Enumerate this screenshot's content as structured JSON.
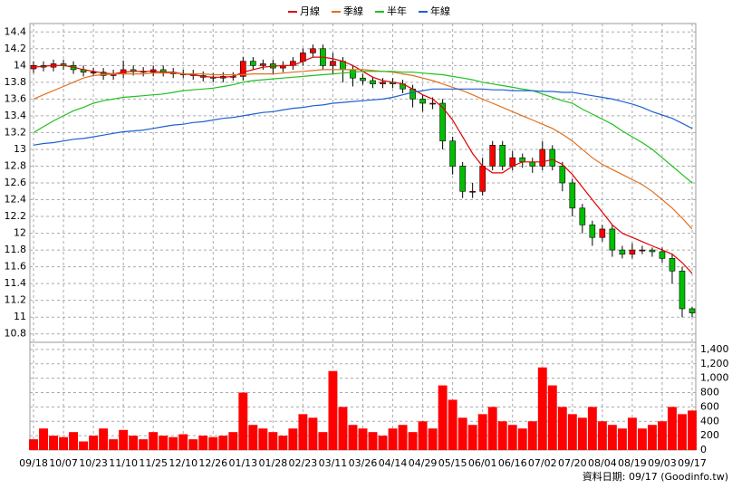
{
  "chart_data": {
    "type": "candlestick",
    "categories": [
      "09/18",
      null,
      null,
      "10/07",
      null,
      null,
      "10/23",
      null,
      null,
      "11/10",
      null,
      null,
      "11/25",
      null,
      null,
      "12/10",
      null,
      null,
      "12/26",
      null,
      null,
      "01/13",
      null,
      null,
      "01/28",
      null,
      null,
      "02/23",
      null,
      null,
      "03/11",
      null,
      null,
      "03/26",
      null,
      null,
      "04/14",
      null,
      null,
      "04/29",
      null,
      null,
      "05/15",
      null,
      null,
      "06/01",
      null,
      null,
      "06/16",
      null,
      null,
      "07/02",
      null,
      null,
      "07/20",
      null,
      null,
      "08/04",
      null,
      null,
      "08/19",
      null,
      null,
      "09/03",
      null,
      null,
      "09/17"
    ],
    "open": [
      13.96,
      14.0,
      13.98,
      14.02,
      14.0,
      13.95,
      13.92,
      13.92,
      13.88,
      13.9,
      13.95,
      13.93,
      13.92,
      13.95,
      13.92,
      13.9,
      13.9,
      13.88,
      13.86,
      13.85,
      13.87,
      13.87,
      14.05,
      14.0,
      14.02,
      13.97,
      14.0,
      14.05,
      14.15,
      14.2,
      14.0,
      14.05,
      13.95,
      13.85,
      13.82,
      13.78,
      13.8,
      13.78,
      13.72,
      13.6,
      13.55,
      13.55,
      13.1,
      12.8,
      12.5,
      12.5,
      12.8,
      13.05,
      12.8,
      12.9,
      12.85,
      12.8,
      13.0,
      12.8,
      12.6,
      12.3,
      12.1,
      11.95,
      12.05,
      11.8,
      11.75,
      11.8,
      11.8,
      11.78,
      11.7,
      11.55,
      11.1
    ],
    "high": [
      14.05,
      14.05,
      14.07,
      14.07,
      14.05,
      14.0,
      13.97,
      13.97,
      13.95,
      14.06,
      14.0,
      13.98,
      14.0,
      14.0,
      13.97,
      13.95,
      13.95,
      13.93,
      13.91,
      13.92,
      13.92,
      14.1,
      14.1,
      14.07,
      14.07,
      14.05,
      14.1,
      14.2,
      14.25,
      14.25,
      14.15,
      14.1,
      14.0,
      13.9,
      13.87,
      13.85,
      13.85,
      13.83,
      13.77,
      13.65,
      13.62,
      13.6,
      13.15,
      12.85,
      12.6,
      12.9,
      13.1,
      13.1,
      12.98,
      12.95,
      12.9,
      13.1,
      13.05,
      12.85,
      12.65,
      12.35,
      12.15,
      12.1,
      12.1,
      11.85,
      11.88,
      11.85,
      11.83,
      11.83,
      11.75,
      11.6,
      11.12
    ],
    "low": [
      13.91,
      13.93,
      13.93,
      13.95,
      13.9,
      13.87,
      13.87,
      13.83,
      13.83,
      13.85,
      13.88,
      13.87,
      13.87,
      13.87,
      13.85,
      13.85,
      13.83,
      13.81,
      13.8,
      13.8,
      13.82,
      13.82,
      13.95,
      13.95,
      13.9,
      13.92,
      13.95,
      14.0,
      14.1,
      13.95,
      13.9,
      13.8,
      13.75,
      13.77,
      13.73,
      13.73,
      13.73,
      13.67,
      13.5,
      13.45,
      13.48,
      13.0,
      12.7,
      12.42,
      12.42,
      12.45,
      12.75,
      12.75,
      12.75,
      12.78,
      12.72,
      12.75,
      12.75,
      12.5,
      12.2,
      12.0,
      11.85,
      11.9,
      11.72,
      11.7,
      11.7,
      11.75,
      11.72,
      11.65,
      11.4,
      11.0,
      11.0
    ],
    "close": [
      14.0,
      13.98,
      14.02,
      14.0,
      13.95,
      13.92,
      13.92,
      13.88,
      13.9,
      13.95,
      13.93,
      13.92,
      13.95,
      13.92,
      13.9,
      13.9,
      13.88,
      13.86,
      13.85,
      13.87,
      13.87,
      14.05,
      14.0,
      14.02,
      13.97,
      14.0,
      14.05,
      14.15,
      14.2,
      14.0,
      14.05,
      13.95,
      13.85,
      13.82,
      13.78,
      13.8,
      13.78,
      13.72,
      13.6,
      13.55,
      13.55,
      13.1,
      12.8,
      12.5,
      12.5,
      12.8,
      13.05,
      12.8,
      12.9,
      12.85,
      12.8,
      13.0,
      12.8,
      12.6,
      12.3,
      12.1,
      11.95,
      12.05,
      11.8,
      11.75,
      11.8,
      11.8,
      11.78,
      11.7,
      11.55,
      11.1,
      11.05
    ],
    "up_color": "#ff0000",
    "down_color": "#00c000",
    "series": [
      {
        "name": "月線",
        "color": "#e00000",
        "values": [
          13.98,
          13.99,
          14.0,
          14.0,
          13.98,
          13.95,
          13.93,
          13.91,
          13.9,
          13.92,
          13.93,
          13.93,
          13.93,
          13.92,
          13.92,
          13.9,
          13.89,
          13.87,
          13.86,
          13.86,
          13.87,
          13.92,
          13.95,
          13.98,
          13.99,
          14.0,
          14.0,
          14.05,
          14.1,
          14.1,
          14.08,
          14.05,
          14.0,
          13.93,
          13.86,
          13.82,
          13.8,
          13.78,
          13.72,
          13.65,
          13.6,
          13.5,
          13.35,
          13.15,
          12.95,
          12.8,
          12.72,
          12.72,
          12.8,
          12.85,
          12.85,
          12.85,
          12.88,
          12.82,
          12.7,
          12.55,
          12.4,
          12.25,
          12.1,
          12.0,
          11.95,
          11.9,
          11.85,
          11.8,
          11.75,
          11.65,
          11.52
        ]
      },
      {
        "name": "季線",
        "color": "#e07020",
        "values": [
          13.6,
          13.65,
          13.7,
          13.75,
          13.8,
          13.85,
          13.88,
          13.89,
          13.9,
          13.9,
          13.9,
          13.9,
          13.91,
          13.91,
          13.91,
          13.9,
          13.9,
          13.9,
          13.89,
          13.89,
          13.89,
          13.89,
          13.9,
          13.9,
          13.9,
          13.91,
          13.92,
          13.93,
          13.94,
          13.95,
          13.95,
          13.95,
          13.95,
          13.95,
          13.94,
          13.93,
          13.92,
          13.9,
          13.88,
          13.85,
          13.82,
          13.78,
          13.74,
          13.7,
          13.65,
          13.6,
          13.55,
          13.5,
          13.45,
          13.4,
          13.35,
          13.3,
          13.25,
          13.18,
          13.1,
          13.0,
          12.9,
          12.82,
          12.76,
          12.7,
          12.64,
          12.58,
          12.5,
          12.4,
          12.3,
          12.18,
          12.05
        ]
      },
      {
        "name": "半年",
        "color": "#20c020",
        "values": [
          13.2,
          13.27,
          13.34,
          13.4,
          13.46,
          13.5,
          13.55,
          13.58,
          13.6,
          13.62,
          13.63,
          13.64,
          13.65,
          13.66,
          13.68,
          13.7,
          13.71,
          13.72,
          13.73,
          13.75,
          13.77,
          13.8,
          13.82,
          13.83,
          13.84,
          13.85,
          13.86,
          13.87,
          13.88,
          13.89,
          13.9,
          13.91,
          13.92,
          13.93,
          13.93,
          13.93,
          13.93,
          13.92,
          13.92,
          13.91,
          13.9,
          13.89,
          13.87,
          13.85,
          13.83,
          13.8,
          13.78,
          13.76,
          13.74,
          13.72,
          13.7,
          13.66,
          13.62,
          13.58,
          13.55,
          13.48,
          13.42,
          13.36,
          13.3,
          13.22,
          13.15,
          13.08,
          13.0,
          12.9,
          12.8,
          12.7,
          12.6
        ]
      },
      {
        "name": "年線",
        "color": "#2060d0",
        "values": [
          13.05,
          13.07,
          13.08,
          13.1,
          13.12,
          13.13,
          13.15,
          13.17,
          13.19,
          13.21,
          13.22,
          13.23,
          13.25,
          13.27,
          13.29,
          13.3,
          13.32,
          13.33,
          13.35,
          13.37,
          13.38,
          13.4,
          13.42,
          13.44,
          13.45,
          13.47,
          13.49,
          13.5,
          13.52,
          13.53,
          13.55,
          13.56,
          13.57,
          13.58,
          13.59,
          13.6,
          13.62,
          13.65,
          13.68,
          13.7,
          13.72,
          13.72,
          13.72,
          13.72,
          13.72,
          13.72,
          13.71,
          13.71,
          13.7,
          13.7,
          13.7,
          13.69,
          13.69,
          13.68,
          13.68,
          13.66,
          13.64,
          13.62,
          13.6,
          13.57,
          13.54,
          13.5,
          13.45,
          13.41,
          13.37,
          13.31,
          13.25
        ]
      }
    ],
    "ylim": [
      10.7,
      14.5
    ],
    "yticks": [
      10.8,
      11,
      11.2,
      11.4,
      11.6,
      11.8,
      12,
      12.2,
      12.4,
      12.6,
      12.8,
      13,
      13.2,
      13.4,
      13.6,
      13.8,
      14,
      14.2,
      14.4
    ],
    "grid": true,
    "volume": {
      "color": "#ff0000",
      "ylim": [
        0,
        1500
      ],
      "yticks": [
        0,
        200,
        400,
        600,
        800,
        {
          "value": 1000,
          "label": "1,000"
        },
        {
          "value": 1200,
          "label": "1,200"
        },
        {
          "value": 1400,
          "label": "1,400"
        }
      ],
      "values": [
        150,
        300,
        200,
        180,
        250,
        120,
        200,
        300,
        150,
        280,
        200,
        150,
        250,
        200,
        180,
        220,
        150,
        200,
        180,
        200,
        250,
        800,
        350,
        300,
        250,
        200,
        300,
        500,
        450,
        250,
        1100,
        600,
        350,
        300,
        250,
        200,
        300,
        350,
        250,
        400,
        300,
        900,
        700,
        450,
        350,
        500,
        600,
        400,
        350,
        300,
        400,
        1150,
        900,
        600,
        500,
        450,
        600,
        400,
        350,
        300,
        450,
        300,
        350,
        400,
        600,
        500,
        550
      ]
    },
    "footnote": "資料日期: 09/17 (Goodinfo.tw)"
  }
}
